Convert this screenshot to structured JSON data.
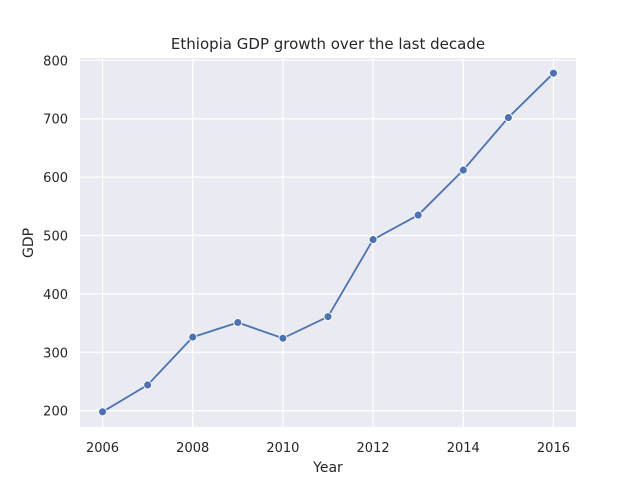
{
  "chart_data": {
    "type": "line",
    "title": "Ethiopia GDP growth over the last decade",
    "xlabel": "Year",
    "ylabel": "GDP",
    "x": [
      2006,
      2007,
      2008,
      2009,
      2010,
      2011,
      2012,
      2013,
      2014,
      2015,
      2016
    ],
    "series": [
      {
        "values": [
          198,
          244,
          326,
          351,
          324,
          361,
          493,
          535,
          612,
          702,
          778
        ]
      }
    ],
    "xlim": [
      2005.5,
      2016.5
    ],
    "ylim": [
      172,
      804
    ],
    "xticks": [
      "2006",
      "2008",
      "2010",
      "2012",
      "2014",
      "2016"
    ],
    "yticks": [
      "200",
      "300",
      "400",
      "500",
      "600",
      "700",
      "800"
    ],
    "grid": true,
    "marker": "circle",
    "colors": {
      "line": "#4c72b0",
      "background": "#eaeaf2",
      "grid": "#ffffff"
    }
  }
}
